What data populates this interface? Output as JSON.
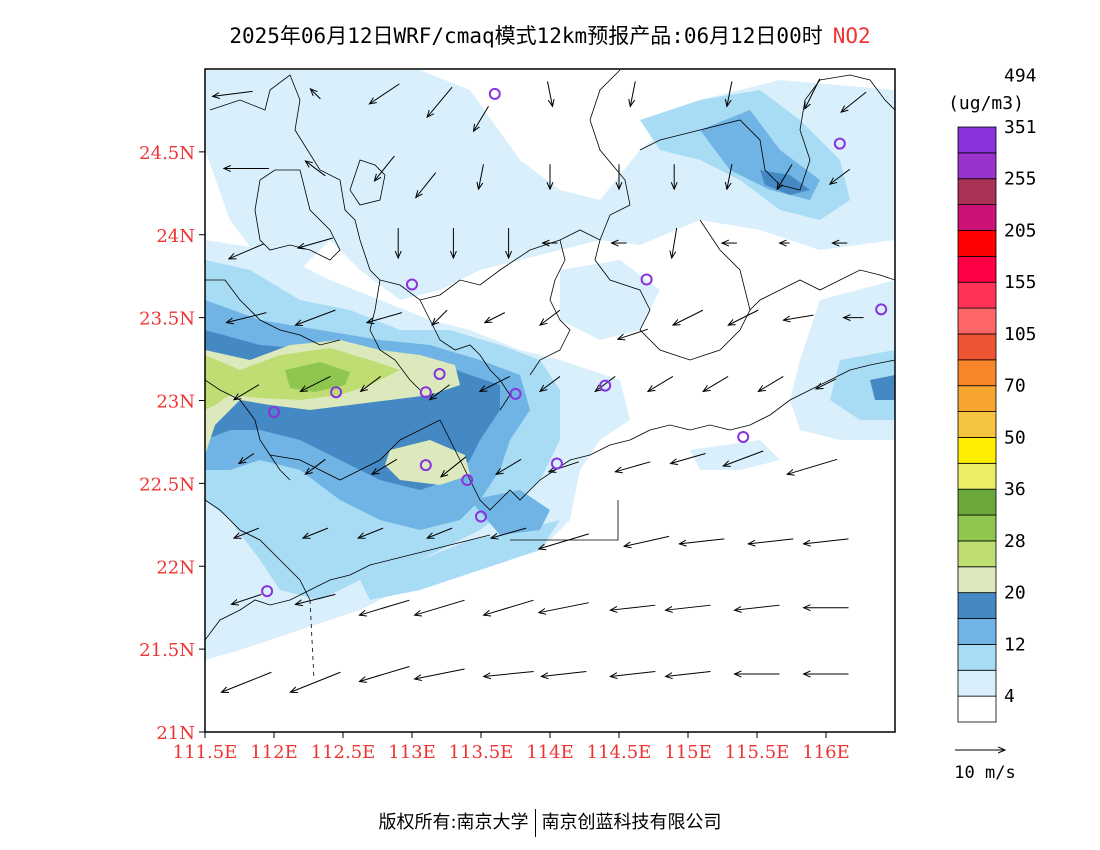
{
  "title": "2025年06月12日WRF/cmaq模式12km预报产品:06月12日00时",
  "pollutant": "NO2",
  "unit": "(ug/m3)",
  "lat_ticks": [
    "21N",
    "21.5N",
    "22N",
    "22.5N",
    "23N",
    "23.5N",
    "24N",
    "24.5N"
  ],
  "lon_ticks": [
    "111.5E",
    "112E",
    "112.5E",
    "113E",
    "113.5E",
    "114E",
    "114.5E",
    "115E",
    "115.5E",
    "116E"
  ],
  "legend": {
    "labels": [
      "4",
      "12",
      "20",
      "28",
      "36",
      "50",
      "70",
      "105",
      "155",
      "205",
      "255",
      "351",
      "494"
    ],
    "colors": [
      "#ffffff",
      "#d9f0fc",
      "#a8dcf5",
      "#6fb4e4",
      "#4589c4",
      "#dce9bd",
      "#bede73",
      "#8fc650",
      "#6aa83a",
      "#eeee66",
      "#ffee00",
      "#f5c542",
      "#f7a531",
      "#f7862a",
      "#ee5533",
      "#ff6666",
      "#ff3355",
      "#ff0044",
      "#ff0000",
      "#cc1177",
      "#aa3355",
      "#9933cc",
      "#8833dd"
    ]
  },
  "wind_reference": {
    "label": "10 m/s"
  },
  "footer": {
    "left": "版权所有:南京大学",
    "right": "南京创蓝科技有限公司"
  },
  "map": {
    "lon_range": [
      111.5,
      116.5
    ],
    "lat_range": [
      21,
      25
    ],
    "stations": [
      {
        "lon": 113.6,
        "lat": 24.85
      },
      {
        "lon": 116.1,
        "lat": 24.55
      },
      {
        "lon": 113.0,
        "lat": 23.7
      },
      {
        "lon": 114.7,
        "lat": 23.73
      },
      {
        "lon": 116.4,
        "lat": 23.55
      },
      {
        "lon": 113.2,
        "lat": 23.16
      },
      {
        "lon": 112.45,
        "lat": 23.05
      },
      {
        "lon": 113.1,
        "lat": 23.05
      },
      {
        "lon": 113.75,
        "lat": 23.04
      },
      {
        "lon": 114.4,
        "lat": 23.09
      },
      {
        "lon": 112.0,
        "lat": 22.93
      },
      {
        "lon": 115.4,
        "lat": 22.78
      },
      {
        "lon": 113.1,
        "lat": 22.61
      },
      {
        "lon": 114.05,
        "lat": 22.62
      },
      {
        "lon": 113.4,
        "lat": 22.52
      },
      {
        "lon": 113.5,
        "lat": 22.3
      },
      {
        "lon": 111.95,
        "lat": 21.85
      }
    ],
    "winds": [
      {
        "lon": 111.7,
        "lat": 24.85,
        "u": -8,
        "v": -1
      },
      {
        "lon": 112.3,
        "lat": 24.85,
        "u": -2,
        "v": 2
      },
      {
        "lon": 112.8,
        "lat": 24.85,
        "u": -6,
        "v": -4
      },
      {
        "lon": 113.2,
        "lat": 24.8,
        "u": -5,
        "v": -6
      },
      {
        "lon": 113.5,
        "lat": 24.7,
        "u": -3,
        "v": -5
      },
      {
        "lon": 114.0,
        "lat": 24.85,
        "u": 1,
        "v": -5
      },
      {
        "lon": 114.6,
        "lat": 24.85,
        "u": -1,
        "v": -5
      },
      {
        "lon": 115.3,
        "lat": 24.85,
        "u": -1,
        "v": -5
      },
      {
        "lon": 115.9,
        "lat": 24.85,
        "u": -3,
        "v": -6
      },
      {
        "lon": 116.2,
        "lat": 24.8,
        "u": -5,
        "v": -4
      },
      {
        "lon": 111.8,
        "lat": 24.4,
        "u": -9,
        "v": 0
      },
      {
        "lon": 112.3,
        "lat": 24.4,
        "u": -4,
        "v": 3
      },
      {
        "lon": 112.8,
        "lat": 24.4,
        "u": -4,
        "v": -5
      },
      {
        "lon": 113.1,
        "lat": 24.3,
        "u": -4,
        "v": -5
      },
      {
        "lon": 113.5,
        "lat": 24.35,
        "u": -1,
        "v": -5
      },
      {
        "lon": 114.0,
        "lat": 24.35,
        "u": 0,
        "v": -5
      },
      {
        "lon": 114.5,
        "lat": 24.35,
        "u": 0,
        "v": -5
      },
      {
        "lon": 114.9,
        "lat": 24.35,
        "u": 0,
        "v": -5
      },
      {
        "lon": 115.3,
        "lat": 24.35,
        "u": -1,
        "v": -5
      },
      {
        "lon": 115.7,
        "lat": 24.35,
        "u": -3,
        "v": -5
      },
      {
        "lon": 116.1,
        "lat": 24.35,
        "u": -4,
        "v": -3
      },
      {
        "lon": 111.8,
        "lat": 23.9,
        "u": -7,
        "v": -3
      },
      {
        "lon": 112.3,
        "lat": 23.95,
        "u": -7,
        "v": -2
      },
      {
        "lon": 112.9,
        "lat": 23.95,
        "u": 0,
        "v": -6
      },
      {
        "lon": 113.3,
        "lat": 23.95,
        "u": 0,
        "v": -6
      },
      {
        "lon": 113.7,
        "lat": 23.95,
        "u": 0,
        "v": -6
      },
      {
        "lon": 114.0,
        "lat": 23.95,
        "u": -3,
        "v": 0
      },
      {
        "lon": 114.5,
        "lat": 23.95,
        "u": -3,
        "v": 0
      },
      {
        "lon": 114.9,
        "lat": 23.95,
        "u": -1,
        "v": -6
      },
      {
        "lon": 115.3,
        "lat": 23.95,
        "u": -3,
        "v": 0
      },
      {
        "lon": 115.7,
        "lat": 23.95,
        "u": -2,
        "v": 0
      },
      {
        "lon": 116.1,
        "lat": 23.95,
        "u": -3,
        "v": 0
      },
      {
        "lon": 111.8,
        "lat": 23.5,
        "u": -8,
        "v": -2
      },
      {
        "lon": 112.3,
        "lat": 23.5,
        "u": -8,
        "v": -3
      },
      {
        "lon": 112.8,
        "lat": 23.5,
        "u": -7,
        "v": -2
      },
      {
        "lon": 113.2,
        "lat": 23.5,
        "u": -3,
        "v": -3
      },
      {
        "lon": 113.6,
        "lat": 23.5,
        "u": -4,
        "v": -2
      },
      {
        "lon": 114.0,
        "lat": 23.5,
        "u": -4,
        "v": -3
      },
      {
        "lon": 114.6,
        "lat": 23.4,
        "u": -6,
        "v": -2
      },
      {
        "lon": 115.0,
        "lat": 23.5,
        "u": -6,
        "v": -3
      },
      {
        "lon": 115.4,
        "lat": 23.5,
        "u": -6,
        "v": -3
      },
      {
        "lon": 115.8,
        "lat": 23.5,
        "u": -6,
        "v": -1
      },
      {
        "lon": 116.2,
        "lat": 23.5,
        "u": -4,
        "v": 0
      },
      {
        "lon": 111.8,
        "lat": 23.05,
        "u": -5,
        "v": -3
      },
      {
        "lon": 112.3,
        "lat": 23.1,
        "u": -6,
        "v": -3
      },
      {
        "lon": 112.7,
        "lat": 23.1,
        "u": -4,
        "v": -3
      },
      {
        "lon": 113.2,
        "lat": 23.05,
        "u": -4,
        "v": -3
      },
      {
        "lon": 113.6,
        "lat": 23.1,
        "u": -6,
        "v": -3
      },
      {
        "lon": 114.0,
        "lat": 23.1,
        "u": -4,
        "v": -3
      },
      {
        "lon": 114.4,
        "lat": 23.1,
        "u": -4,
        "v": -3
      },
      {
        "lon": 114.8,
        "lat": 23.1,
        "u": -5,
        "v": -3
      },
      {
        "lon": 115.2,
        "lat": 23.1,
        "u": -5,
        "v": -3
      },
      {
        "lon": 115.6,
        "lat": 23.1,
        "u": -5,
        "v": -3
      },
      {
        "lon": 116.0,
        "lat": 23.1,
        "u": -4,
        "v": -2
      },
      {
        "lon": 111.8,
        "lat": 22.65,
        "u": -3,
        "v": -2
      },
      {
        "lon": 112.3,
        "lat": 22.6,
        "u": -4,
        "v": -3
      },
      {
        "lon": 112.8,
        "lat": 22.6,
        "u": -5,
        "v": -3
      },
      {
        "lon": 113.3,
        "lat": 22.6,
        "u": -5,
        "v": -4
      },
      {
        "lon": 113.7,
        "lat": 22.6,
        "u": -5,
        "v": -3
      },
      {
        "lon": 114.1,
        "lat": 22.6,
        "u": -6,
        "v": -2
      },
      {
        "lon": 114.6,
        "lat": 22.6,
        "u": -7,
        "v": -2
      },
      {
        "lon": 115.0,
        "lat": 22.65,
        "u": -7,
        "v": -2
      },
      {
        "lon": 115.4,
        "lat": 22.65,
        "u": -8,
        "v": -3
      },
      {
        "lon": 115.9,
        "lat": 22.6,
        "u": -10,
        "v": -3
      },
      {
        "lon": 111.8,
        "lat": 22.2,
        "u": -5,
        "v": -2
      },
      {
        "lon": 112.3,
        "lat": 22.2,
        "u": -5,
        "v": -2
      },
      {
        "lon": 112.7,
        "lat": 22.2,
        "u": -5,
        "v": -2
      },
      {
        "lon": 113.2,
        "lat": 22.2,
        "u": -5,
        "v": -2
      },
      {
        "lon": 113.7,
        "lat": 22.2,
        "u": -7,
        "v": -2
      },
      {
        "lon": 114.1,
        "lat": 22.15,
        "u": -10,
        "v": -3
      },
      {
        "lon": 114.7,
        "lat": 22.15,
        "u": -9,
        "v": -2
      },
      {
        "lon": 115.1,
        "lat": 22.15,
        "u": -9,
        "v": -1
      },
      {
        "lon": 115.6,
        "lat": 22.15,
        "u": -9,
        "v": -1
      },
      {
        "lon": 116.0,
        "lat": 22.15,
        "u": -9,
        "v": -1
      },
      {
        "lon": 111.8,
        "lat": 21.8,
        "u": -6,
        "v": -2
      },
      {
        "lon": 112.3,
        "lat": 21.8,
        "u": -8,
        "v": -2
      },
      {
        "lon": 112.8,
        "lat": 21.75,
        "u": -10,
        "v": -3
      },
      {
        "lon": 113.2,
        "lat": 21.75,
        "u": -10,
        "v": -3
      },
      {
        "lon": 113.7,
        "lat": 21.75,
        "u": -10,
        "v": -3
      },
      {
        "lon": 114.1,
        "lat": 21.75,
        "u": -10,
        "v": -2
      },
      {
        "lon": 114.6,
        "lat": 21.75,
        "u": -9,
        "v": -1
      },
      {
        "lon": 115.0,
        "lat": 21.75,
        "u": -9,
        "v": -1
      },
      {
        "lon": 115.5,
        "lat": 21.75,
        "u": -9,
        "v": -1
      },
      {
        "lon": 116.0,
        "lat": 21.75,
        "u": -9,
        "v": 0
      },
      {
        "lon": 111.8,
        "lat": 21.3,
        "u": -10,
        "v": -4
      },
      {
        "lon": 112.3,
        "lat": 21.3,
        "u": -10,
        "v": -4
      },
      {
        "lon": 112.8,
        "lat": 21.35,
        "u": -10,
        "v": -3
      },
      {
        "lon": 113.2,
        "lat": 21.35,
        "u": -10,
        "v": -2
      },
      {
        "lon": 113.7,
        "lat": 21.35,
        "u": -10,
        "v": -1
      },
      {
        "lon": 114.1,
        "lat": 21.35,
        "u": -9,
        "v": -1
      },
      {
        "lon": 114.6,
        "lat": 21.35,
        "u": -9,
        "v": -1
      },
      {
        "lon": 115.0,
        "lat": 21.35,
        "u": -9,
        "v": -1
      },
      {
        "lon": 115.5,
        "lat": 21.35,
        "u": -9,
        "v": 0
      },
      {
        "lon": 116.0,
        "lat": 21.35,
        "u": -9,
        "v": 0
      }
    ]
  }
}
